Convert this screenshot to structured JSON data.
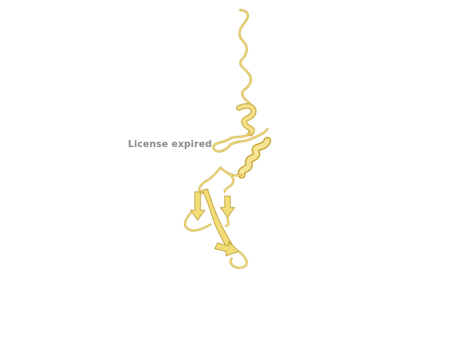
{
  "viewer": {
    "watermark_text": "License expired",
    "background_color": "#ffffff",
    "ribbon_color": "#f2dc78",
    "ribbon_shade": "#c9a93c",
    "watermark_color": "#8a8a8a"
  }
}
